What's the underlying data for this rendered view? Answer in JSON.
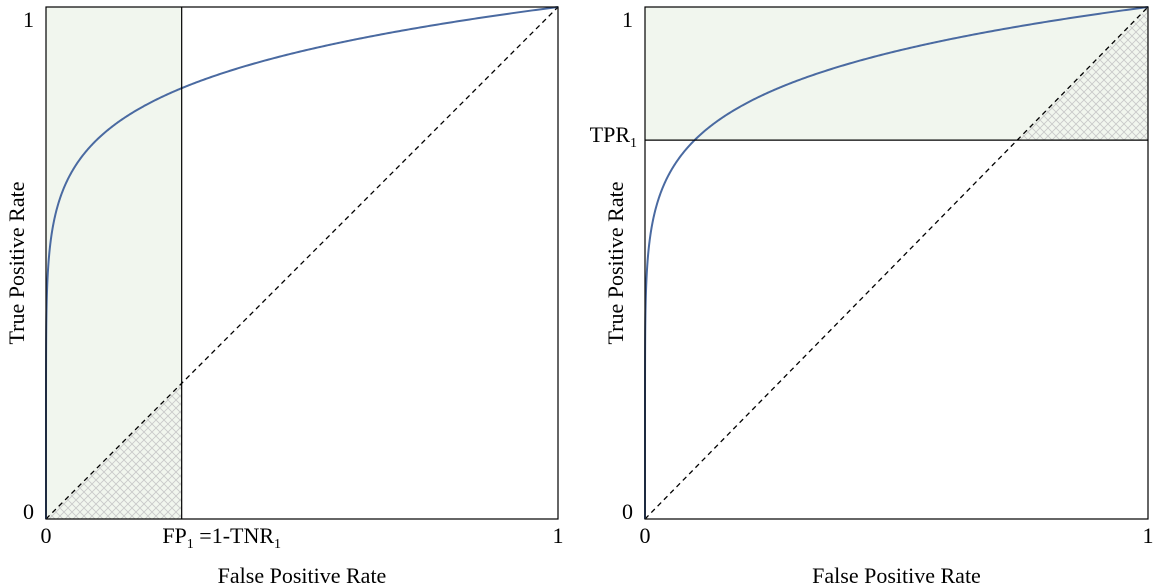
{
  "colors": {
    "curve": "#4a6aa1",
    "shade": "#f1f6ee",
    "frame": "#000000",
    "hatch": "#c9c9c9"
  },
  "chart_data": [
    {
      "type": "line",
      "xlabel": "False Positive Rate",
      "ylabel": "True Positive Rate",
      "xlim": [
        0,
        1
      ],
      "ylim": [
        0,
        1
      ],
      "x_ticks": [
        "0",
        "1"
      ],
      "y_ticks": [
        "0",
        "1"
      ],
      "curve_exponent": 0.13,
      "diagonal": "dashed",
      "shaded_region": "x < FP1",
      "hatched_region": "below diagonal, x < FP1",
      "threshold": {
        "axis": "x",
        "value": 0.265,
        "label_main": "FP",
        "label_sub": "1",
        "label_eq": " =1-TNR",
        "label_sub2": "1"
      },
      "grid": false
    },
    {
      "type": "line",
      "xlabel": "False Positive Rate",
      "ylabel": "True Positive Rate",
      "xlim": [
        0,
        1
      ],
      "ylim": [
        0,
        1
      ],
      "x_ticks": [
        "0",
        "1"
      ],
      "y_ticks": [
        "0",
        "1"
      ],
      "curve_exponent": 0.13,
      "diagonal": "dashed",
      "shaded_region": "y > TPR1",
      "hatched_region": "below diagonal, y > TPR1",
      "threshold": {
        "axis": "y",
        "value": 0.74,
        "label_main": "TPR",
        "label_sub": "1"
      },
      "grid": false
    }
  ]
}
